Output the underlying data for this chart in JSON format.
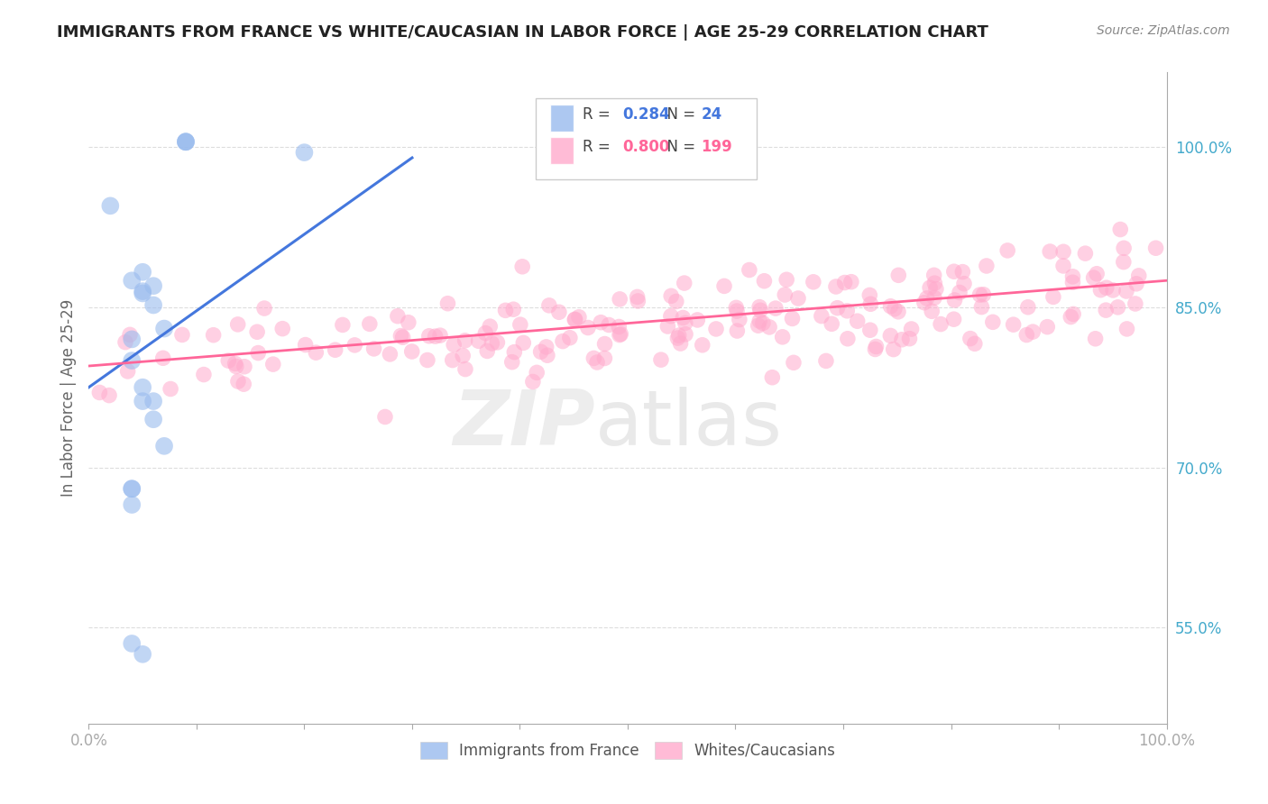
{
  "title": "IMMIGRANTS FROM FRANCE VS WHITE/CAUCASIAN IN LABOR FORCE | AGE 25-29 CORRELATION CHART",
  "source": "Source: ZipAtlas.com",
  "ylabel": "In Labor Force | Age 25-29",
  "xlim": [
    0.0,
    1.0
  ],
  "ylim": [
    0.46,
    1.07
  ],
  "yticks": [
    0.55,
    0.7,
    0.85,
    1.0
  ],
  "ytick_labels": [
    "55.0%",
    "70.0%",
    "85.0%",
    "100.0%"
  ],
  "xticks": [
    0.0,
    0.1,
    0.2,
    0.3,
    0.4,
    0.5,
    0.6,
    0.7,
    0.8,
    0.9,
    1.0
  ],
  "xtick_labels": [
    "0.0%",
    "",
    "",
    "",
    "",
    "",
    "",
    "",
    "",
    "",
    "100.0%"
  ],
  "blue_R": 0.284,
  "blue_N": 24,
  "pink_R": 0.8,
  "pink_N": 199,
  "blue_color": "#99BBEE",
  "pink_color": "#FFAACC",
  "blue_line_color": "#4477DD",
  "pink_line_color": "#FF6699",
  "legend_label_blue": "Immigrants from France",
  "legend_label_pink": "Whites/Caucasians",
  "blue_scatter_x": [
    0.02,
    0.09,
    0.09,
    0.09,
    0.2,
    0.04,
    0.05,
    0.06,
    0.05,
    0.05,
    0.06,
    0.07,
    0.04,
    0.05,
    0.05,
    0.06,
    0.06,
    0.07,
    0.04,
    0.04,
    0.04,
    0.04,
    0.05,
    0.04
  ],
  "blue_scatter_y": [
    0.945,
    1.005,
    1.005,
    1.005,
    0.995,
    0.875,
    0.883,
    0.87,
    0.865,
    0.863,
    0.852,
    0.83,
    0.82,
    0.775,
    0.762,
    0.762,
    0.745,
    0.72,
    0.68,
    0.665,
    0.68,
    0.535,
    0.525,
    0.8
  ],
  "blue_trend_x": [
    0.0,
    0.3
  ],
  "blue_trend_y": [
    0.775,
    0.99
  ],
  "pink_trend_x": [
    0.0,
    1.0
  ],
  "pink_trend_y": [
    0.795,
    0.875
  ]
}
